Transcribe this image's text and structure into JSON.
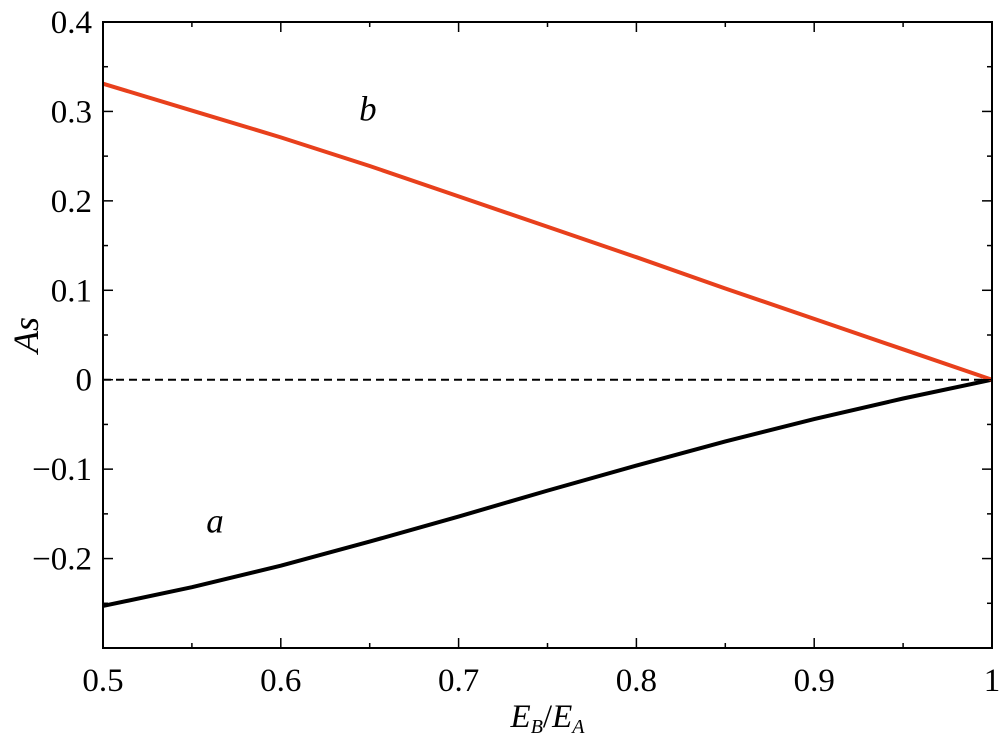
{
  "chart_data": {
    "type": "line",
    "title": "",
    "xlabel": {
      "main": "E",
      "sub1": "B",
      "sep": "/",
      "main2": "E",
      "sub2": "A"
    },
    "ylabel": "As",
    "xlim": [
      0.5,
      1.0
    ],
    "ylim": [
      -0.3,
      0.4
    ],
    "xticks": [
      0.5,
      0.6,
      0.7,
      0.8,
      0.9,
      1.0
    ],
    "xtick_labels": [
      "0.5",
      "0.6",
      "0.7",
      "0.8",
      "0.9",
      "1"
    ],
    "yticks": [
      -0.2,
      -0.1,
      0.0,
      0.1,
      0.2,
      0.3,
      0.4
    ],
    "ytick_labels": [
      "−0.2",
      "−0.1",
      "0",
      "0.1",
      "0.2",
      "0.3",
      "0.4"
    ],
    "grid": false,
    "legend": "none",
    "reference_line": {
      "y": 0,
      "style": "dashed",
      "color": "#000000"
    },
    "series": [
      {
        "name": "a",
        "color": "#000000",
        "x": [
          0.5,
          0.55,
          0.6,
          0.65,
          0.7,
          0.75,
          0.8,
          0.85,
          0.9,
          0.95,
          1.0
        ],
        "y": [
          -0.253,
          -0.232,
          -0.208,
          -0.181,
          -0.153,
          -0.124,
          -0.096,
          -0.069,
          -0.044,
          -0.021,
          0.0
        ]
      },
      {
        "name": "b",
        "color": "#e8401c",
        "x": [
          0.5,
          0.55,
          0.6,
          0.65,
          0.7,
          0.75,
          0.8,
          0.85,
          0.9,
          0.95,
          1.0
        ],
        "y": [
          0.331,
          0.301,
          0.271,
          0.239,
          0.205,
          0.171,
          0.137,
          0.102,
          0.068,
          0.034,
          0.0
        ]
      }
    ],
    "annotations": [
      {
        "text": "b",
        "x": 0.649,
        "y": 0.29
      },
      {
        "text": "a",
        "x": 0.563,
        "y": -0.171
      }
    ]
  }
}
